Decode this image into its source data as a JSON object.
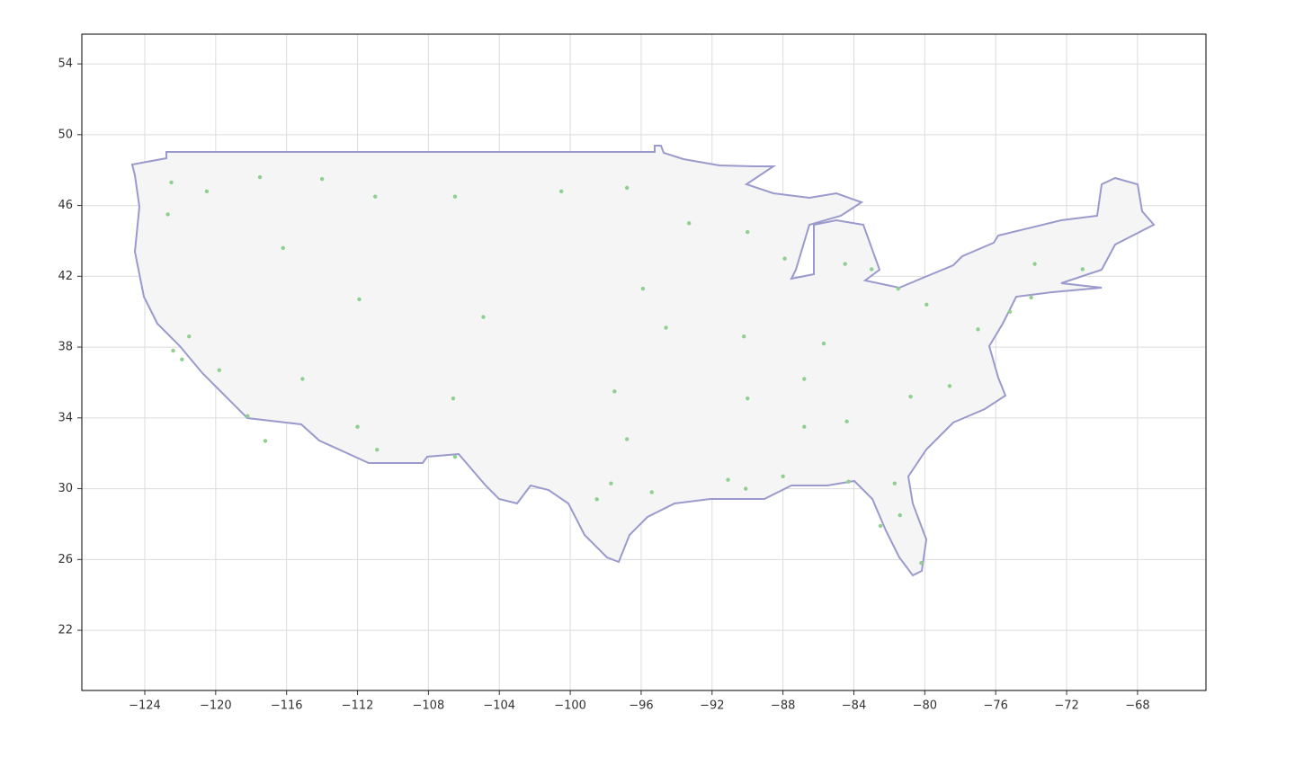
{
  "chart_data": {
    "type": "scatter",
    "xlim": [
      -127.55,
      -64.14
    ],
    "ylim": [
      18.6,
      55.68
    ],
    "xticks": [
      {
        "value": -124,
        "label": "−124"
      },
      {
        "value": -120,
        "label": "−120"
      },
      {
        "value": -116,
        "label": "−116"
      },
      {
        "value": -112,
        "label": "−112"
      },
      {
        "value": -108,
        "label": "−108"
      },
      {
        "value": -104,
        "label": "−104"
      },
      {
        "value": -100,
        "label": "−100"
      },
      {
        "value": -96,
        "label": "−96"
      },
      {
        "value": -92,
        "label": "−92"
      },
      {
        "value": -88,
        "label": "−88"
      },
      {
        "value": -84,
        "label": "−84"
      },
      {
        "value": -80,
        "label": "−80"
      },
      {
        "value": -76,
        "label": "−76"
      },
      {
        "value": -72,
        "label": "−72"
      },
      {
        "value": -68,
        "label": "−68"
      }
    ],
    "yticks": [
      22,
      26,
      30,
      34,
      38,
      42,
      46,
      50,
      54
    ],
    "grid": true,
    "series": [
      {
        "color": "#8fcf8f",
        "x": [
          -122.5,
          -120.5,
          -117.5,
          -114,
          -111,
          -106.5,
          -100.5,
          -96.8,
          -93.3,
          -90,
          -87.9,
          -84.5,
          -83,
          -81.5,
          -79.9,
          -77,
          -75.2,
          -74,
          -71.1,
          -73.8,
          -78.6,
          -80.8,
          -84.4,
          -81.4,
          -80.2,
          -82.5,
          -86.8,
          -90,
          -86.8,
          -85.7,
          -90.2,
          -94.6,
          -95.9,
          -97.5,
          -96.8,
          -95.4,
          -98.5,
          -97.7,
          -106.5,
          -106.6,
          -112,
          -110.9,
          -115.1,
          -111.9,
          -104.9,
          -116.2,
          -122.7,
          -122.4,
          -121.9,
          -121.5,
          -118.2,
          -117.2,
          -119.8,
          -90.1,
          -91.1,
          -88,
          -84.3,
          -81.7
        ],
        "y": [
          47.3,
          46.8,
          47.6,
          47.5,
          46.5,
          46.5,
          46.8,
          47,
          45,
          44.5,
          43,
          42.7,
          42.4,
          41.3,
          40.4,
          39,
          40,
          40.8,
          42.4,
          42.7,
          35.8,
          35.2,
          33.8,
          28.5,
          25.8,
          27.9,
          33.5,
          35.1,
          36.2,
          38.2,
          38.6,
          39.1,
          41.3,
          35.5,
          32.8,
          29.8,
          29.4,
          30.3,
          31.8,
          35.1,
          33.5,
          32.2,
          36.2,
          40.7,
          39.7,
          43.6,
          45.5,
          37.8,
          37.3,
          38.6,
          34.1,
          32.7,
          36.7,
          30,
          30.5,
          30.7,
          30.4,
          30.3
        ]
      }
    ]
  }
}
